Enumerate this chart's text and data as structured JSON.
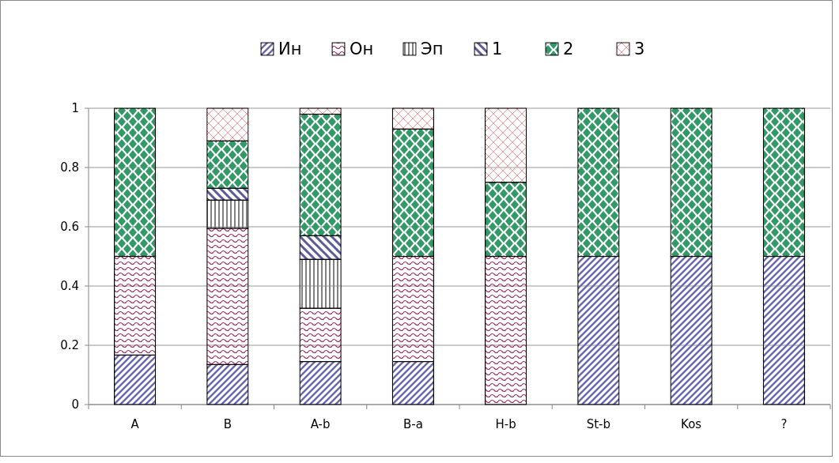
{
  "chart_data": {
    "type": "bar",
    "stacked": true,
    "categories": [
      "A",
      "B",
      "A-b",
      "B-a",
      "H-b",
      "St-b",
      "Kos",
      "?"
    ],
    "series": [
      {
        "name": "Ин",
        "color": "#6b6bab",
        "values": [
          0.167,
          0.135,
          0.145,
          0.145,
          0,
          0.5,
          0.5,
          0.5
        ]
      },
      {
        "name": "Он",
        "color": "#993366",
        "values": [
          0.333,
          0.46,
          0.18,
          0.355,
          0.5,
          0,
          0,
          0
        ]
      },
      {
        "name": "Эп",
        "color": "#808080",
        "values": [
          0,
          0.095,
          0.165,
          0,
          0,
          0,
          0,
          0
        ]
      },
      {
        "name": "1",
        "color": "#5a5a9a",
        "values": [
          0,
          0.04,
          0.08,
          0,
          0,
          0,
          0,
          0
        ]
      },
      {
        "name": "2",
        "color": "#339966",
        "values": [
          0.5,
          0.16,
          0.41,
          0.43,
          0.25,
          0.5,
          0.5,
          0.5
        ]
      },
      {
        "name": "3",
        "color": "#ff9999",
        "values": [
          0,
          0.11,
          0.02,
          0.07,
          0.25,
          0,
          0,
          0
        ]
      }
    ],
    "ylim": [
      0,
      1
    ],
    "yticks": [
      0,
      0.2,
      0.4,
      0.6,
      0.8,
      1
    ],
    "grid": "y",
    "legend": "top"
  }
}
